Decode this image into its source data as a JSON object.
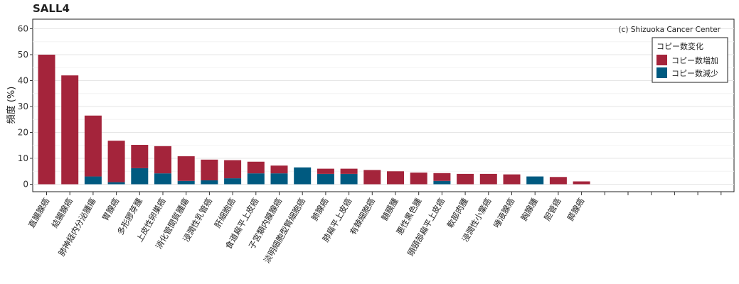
{
  "chart_data": {
    "type": "bar",
    "stacked": true,
    "title": "SALL4",
    "ylabel": "頻度 (%)",
    "xlabel": "",
    "ylim": [
      0,
      62
    ],
    "yticks": [
      0,
      10,
      20,
      30,
      40,
      50,
      60
    ],
    "grid": true,
    "credit": "(c) Shizuoka Cancer Center",
    "legend": {
      "title": "コピー数変化",
      "position": "top-right"
    },
    "categories": [
      "直腸腺癌",
      "結腸腺癌",
      "肺神経内分泌腫瘍",
      "胃腺癌",
      "多形膠芽腫",
      "上皮性卵巣癌",
      "消化管間質腫瘍",
      "浸潤性乳管癌",
      "肝細胞癌",
      "食道扁平上皮癌",
      "子宮類内膜腺癌",
      "淡明細胞型腎細胞癌",
      "肺腺癌",
      "肺扁平上皮癌",
      "有棘細胞癌",
      "髄膜腫",
      "悪性黒色腫",
      "頭頸部扁平上皮癌",
      "軟部肉腫",
      "浸潤性小葉癌",
      "唾液腺癌",
      "胸腺腫",
      "胆管癌",
      "膵腺癌"
    ],
    "extra_slots": 6,
    "series": [
      {
        "name": "コピー数増加",
        "color": "#a4243b",
        "values": [
          50.0,
          42.0,
          23.5,
          16.0,
          9.0,
          10.5,
          9.5,
          8.0,
          7.0,
          4.5,
          3.0,
          0.0,
          2.0,
          2.0,
          5.5,
          5.0,
          4.5,
          3.0,
          4.0,
          4.0,
          3.8,
          0.0,
          2.8,
          1.1
        ]
      },
      {
        "name": "コピー数減少",
        "color": "#005a80",
        "values": [
          0.0,
          0.0,
          3.0,
          0.8,
          6.2,
          4.2,
          1.3,
          1.5,
          2.3,
          4.2,
          4.2,
          6.5,
          4.0,
          4.0,
          0.0,
          0.0,
          0.0,
          1.3,
          0.0,
          0.0,
          0.0,
          3.0,
          0.0,
          0.0
        ]
      }
    ]
  }
}
